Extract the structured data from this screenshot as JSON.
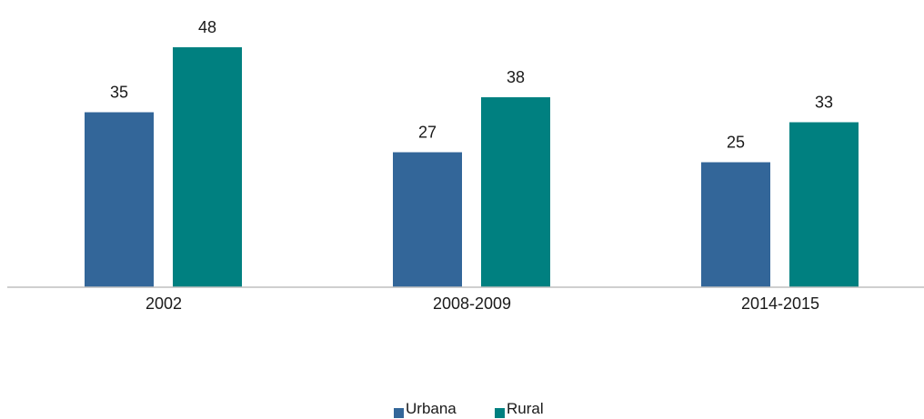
{
  "chart_data": {
    "type": "bar",
    "categories": [
      "2002",
      "2008-2009",
      "2014-2015"
    ],
    "series": [
      {
        "name": "Urbana",
        "values": [
          35,
          27,
          25
        ],
        "color": "#336699"
      },
      {
        "name": "Rural",
        "values": [
          48,
          38,
          33
        ],
        "color": "#008080"
      }
    ],
    "title": "",
    "xlabel": "",
    "ylabel": "",
    "ylim": [
      0,
      50
    ],
    "grid": false,
    "legend_position": "bottom-center",
    "data_labels": true,
    "axis_color": "#bfbfbf"
  }
}
